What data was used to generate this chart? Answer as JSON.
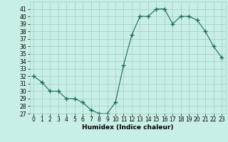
{
  "x": [
    0,
    1,
    2,
    3,
    4,
    5,
    6,
    7,
    8,
    9,
    10,
    11,
    12,
    13,
    14,
    15,
    16,
    17,
    18,
    19,
    20,
    21,
    22,
    23
  ],
  "y": [
    32,
    31.2,
    30,
    30,
    29,
    29,
    28.5,
    27.5,
    27,
    27,
    28.5,
    33.5,
    37.5,
    40,
    40,
    41,
    41,
    39,
    40,
    40,
    39.5,
    38,
    36,
    34.5
  ],
  "line_color": "#1a6b5a",
  "marker_color": "#1a6b5a",
  "bg_color": "#c8eee8",
  "grid_color": "#a0ccc4",
  "xlabel": "Humidex (Indice chaleur)",
  "xlim": [
    -0.5,
    23.5
  ],
  "ylim": [
    27,
    42
  ],
  "yticks": [
    27,
    28,
    29,
    30,
    31,
    32,
    33,
    34,
    35,
    36,
    37,
    38,
    39,
    40,
    41
  ],
  "xticks": [
    0,
    1,
    2,
    3,
    4,
    5,
    6,
    7,
    8,
    9,
    10,
    11,
    12,
    13,
    14,
    15,
    16,
    17,
    18,
    19,
    20,
    21,
    22,
    23
  ],
  "tick_fontsize": 5.5,
  "xlabel_fontsize": 6.5
}
